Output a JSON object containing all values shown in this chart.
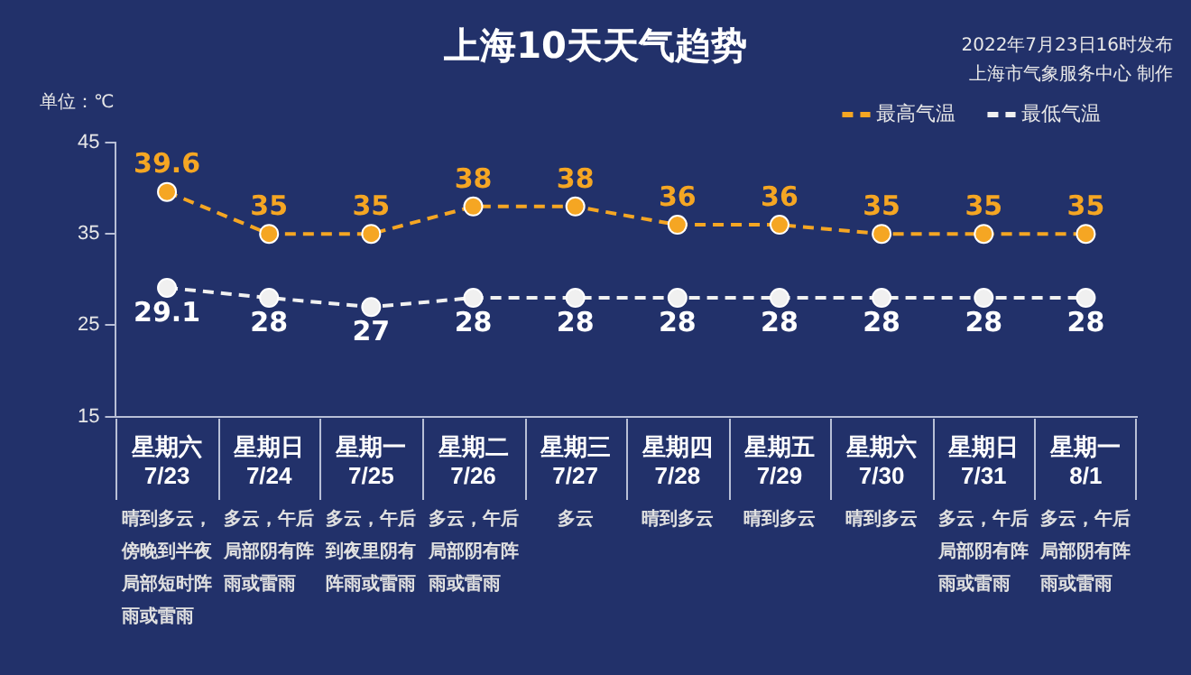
{
  "chart_data": {
    "type": "line",
    "title": "上海10天天气趋势",
    "ylabel": "单位：℃",
    "categories": [
      "星期六\n7/23",
      "星期日\n7/24",
      "星期一\n7/25",
      "星期二\n7/26",
      "星期三\n7/27",
      "星期四\n7/28",
      "星期五\n7/29",
      "星期六\n7/30",
      "星期日\n7/31",
      "星期一\n8/1"
    ],
    "series": [
      {
        "name": "最高气温",
        "color": "#f5a623",
        "values": [
          39.6,
          35,
          35,
          38,
          38,
          36,
          36,
          35,
          35,
          35
        ]
      },
      {
        "name": "最低气温",
        "color": "#f0f0f0",
        "values": [
          29.1,
          28,
          27,
          28,
          28,
          28,
          28,
          28,
          28,
          28
        ]
      }
    ],
    "ylim": [
      15,
      45
    ],
    "yticks": [
      15,
      25,
      35,
      45
    ],
    "grid": false,
    "legend": "top right",
    "marker": "circle",
    "line_style": "dashed",
    "data_labels": true,
    "annotations": [
      "2022年7月23日16时发布",
      "上海市气象服务中心 制作",
      "晴到多云，傍晚到半夜局部短时阵雨或雷雨",
      "多云，午后局部阴有阵雨或雷雨",
      "多云，午后到夜里阴有阵雨或雷雨",
      "多云，午后局部阴有阵雨或雷雨",
      "多云",
      "晴到多云",
      "晴到多云",
      "晴到多云",
      "多云，午后局部阴有阵雨或雷雨",
      "多云，午后局部阴有阵雨或雷雨"
    ]
  }
}
